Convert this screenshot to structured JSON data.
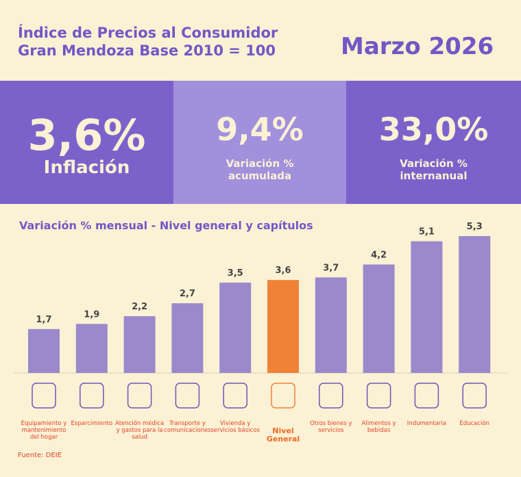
{
  "header": {
    "title_line1": "Índice de Precios al Consumidor",
    "title_line2": "Gran Mendoza Base 2010 = 100",
    "period": "Marzo 2026"
  },
  "kpis": [
    {
      "value": "3,6%",
      "label": "Inflación"
    },
    {
      "value": "9,4%",
      "label": "Variación % acumulada"
    },
    {
      "value": "33,0%",
      "label": "Variación % internanual"
    }
  ],
  "chart_data": {
    "type": "bar",
    "title": "Variación % mensual - Nivel general y capítulos",
    "categories": [
      "Equipamiento y mantenimiento del hogar",
      "Esparcimiento",
      "Atención médica y gastos para la salud",
      "Transporte y comunicaciones",
      "Vivienda y servicios básicos",
      "Nivel General",
      "Otros bienes y servicios",
      "Alimentos y bebidas",
      "Indumentaria",
      "Educación"
    ],
    "values": [
      1.7,
      1.9,
      2.2,
      2.7,
      3.5,
      3.6,
      3.7,
      4.2,
      5.1,
      5.3
    ],
    "value_labels": [
      "1,7",
      "1,9",
      "2,2",
      "2,7",
      "3,5",
      "3,6",
      "3,7",
      "4,2",
      "5,1",
      "5,3"
    ],
    "colors": [
      "#9b89cc",
      "#9b89cc",
      "#9b89cc",
      "#9b89cc",
      "#9b89cc",
      "#ef8237",
      "#9b89cc",
      "#9b89cc",
      "#9b89cc",
      "#9b89cc"
    ]
  },
  "source": "Fuente: DEIE"
}
